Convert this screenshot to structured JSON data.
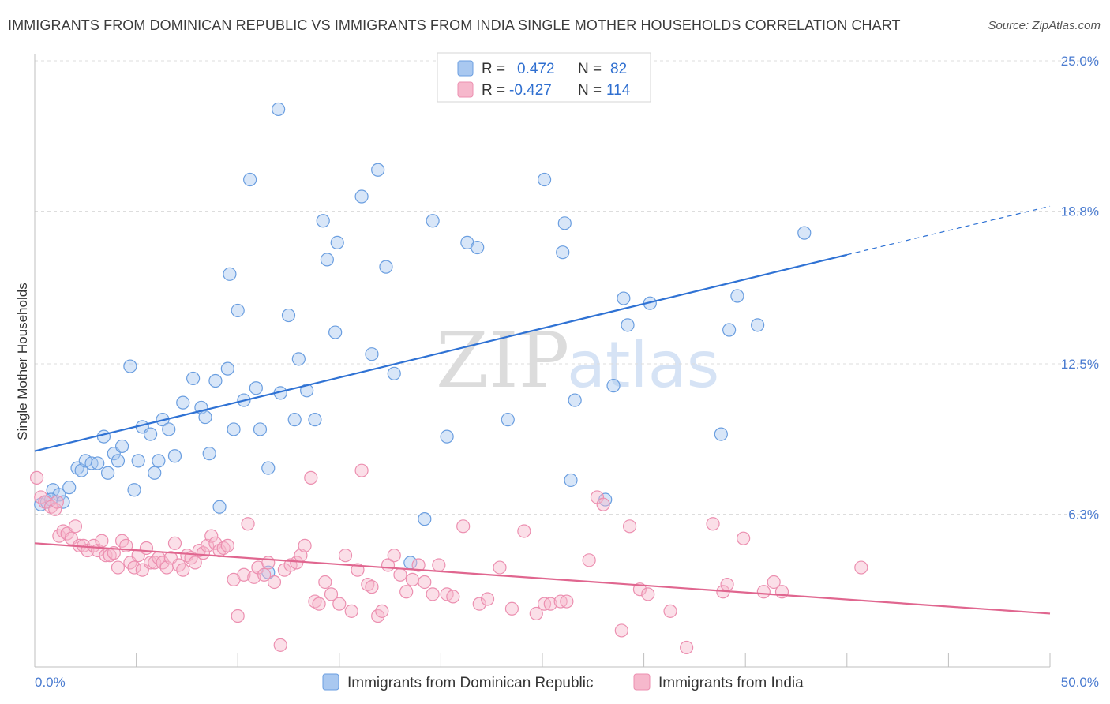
{
  "header": {
    "title": "IMMIGRANTS FROM DOMINICAN REPUBLIC VS IMMIGRANTS FROM INDIA SINGLE MOTHER HOUSEHOLDS CORRELATION CHART",
    "source": "Source: ZipAtlas.com"
  },
  "watermark": {
    "zip": "ZIP",
    "atlas": "atlas"
  },
  "colors": {
    "blue_fill": "#a9c8f0",
    "blue_stroke": "#6a9ee0",
    "blue_line": "#2f72d4",
    "pink_fill": "#f6b8cc",
    "pink_stroke": "#ec8fb0",
    "pink_line": "#e0668f",
    "grid": "#dddddd"
  },
  "legend": {
    "rows": [
      {
        "r_label": "R =",
        "r_value": "0.472",
        "n_label": "N =",
        "n_value": "82"
      },
      {
        "r_label": "R =",
        "r_value": "-0.427",
        "n_label": "N =",
        "n_value": "114"
      }
    ]
  },
  "chart_data": {
    "type": "scatter",
    "ylabel": "Single Mother Households",
    "xlim": [
      0,
      50
    ],
    "ylim": [
      0,
      25.0
    ],
    "x_tick_labels": [
      "0.0%",
      "50.0%"
    ],
    "y_ticks": [
      {
        "value": 6.3,
        "label": "6.3%"
      },
      {
        "value": 12.5,
        "label": "12.5%"
      },
      {
        "value": 18.8,
        "label": "18.8%"
      },
      {
        "value": 25.0,
        "label": "25.0%"
      }
    ],
    "grid": true,
    "legend_position": "top-center",
    "series": [
      {
        "name": "Immigrants from Dominican Republic",
        "color": "#a9c8f0",
        "trend": {
          "x0": 0,
          "y0": 8.9,
          "x1": 40,
          "y1": 17.0,
          "dash_to_x": 50,
          "dash_to_y": 19.0
        },
        "points": [
          [
            0.3,
            6.7
          ],
          [
            0.6,
            6.8
          ],
          [
            0.9,
            7.3
          ],
          [
            1.2,
            7.1
          ],
          [
            1.7,
            7.4
          ],
          [
            2.1,
            8.2
          ],
          [
            2.3,
            8.1
          ],
          [
            2.5,
            8.5
          ],
          [
            2.8,
            8.4
          ],
          [
            3.1,
            8.4
          ],
          [
            3.4,
            9.5
          ],
          [
            3.6,
            8.0
          ],
          [
            3.9,
            8.8
          ],
          [
            4.1,
            8.5
          ],
          [
            4.3,
            9.1
          ],
          [
            4.7,
            12.4
          ],
          [
            4.9,
            7.3
          ],
          [
            5.1,
            8.5
          ],
          [
            5.3,
            9.9
          ],
          [
            5.7,
            9.6
          ],
          [
            5.9,
            8.0
          ],
          [
            6.1,
            8.5
          ],
          [
            6.3,
            10.2
          ],
          [
            6.6,
            9.8
          ],
          [
            6.9,
            8.7
          ],
          [
            7.3,
            10.9
          ],
          [
            7.8,
            11.9
          ],
          [
            8.2,
            10.7
          ],
          [
            8.4,
            10.3
          ],
          [
            8.6,
            8.8
          ],
          [
            8.9,
            11.8
          ],
          [
            9.1,
            6.6
          ],
          [
            9.5,
            12.3
          ],
          [
            9.6,
            16.2
          ],
          [
            9.8,
            9.8
          ],
          [
            10.0,
            14.7
          ],
          [
            10.3,
            11.0
          ],
          [
            10.6,
            20.1
          ],
          [
            10.9,
            11.5
          ],
          [
            11.1,
            9.8
          ],
          [
            11.5,
            8.2
          ],
          [
            11.5,
            3.9
          ],
          [
            12.0,
            23.0
          ],
          [
            12.1,
            11.3
          ],
          [
            12.5,
            14.5
          ],
          [
            12.8,
            10.2
          ],
          [
            13.0,
            12.7
          ],
          [
            13.4,
            11.4
          ],
          [
            13.8,
            10.2
          ],
          [
            14.2,
            18.4
          ],
          [
            14.4,
            16.8
          ],
          [
            14.8,
            13.8
          ],
          [
            14.9,
            17.5
          ],
          [
            16.1,
            19.4
          ],
          [
            16.6,
            12.9
          ],
          [
            16.9,
            20.5
          ],
          [
            17.3,
            16.5
          ],
          [
            17.7,
            12.1
          ],
          [
            18.5,
            4.3
          ],
          [
            19.2,
            6.1
          ],
          [
            19.6,
            18.4
          ],
          [
            20.3,
            9.5
          ],
          [
            21.3,
            17.5
          ],
          [
            21.8,
            17.3
          ],
          [
            23.3,
            10.2
          ],
          [
            25.1,
            20.1
          ],
          [
            26.1,
            18.3
          ],
          [
            26.0,
            17.1
          ],
          [
            26.4,
            7.7
          ],
          [
            26.6,
            11.0
          ],
          [
            28.1,
            6.9
          ],
          [
            28.5,
            11.6
          ],
          [
            29.0,
            15.2
          ],
          [
            29.2,
            14.1
          ],
          [
            30.3,
            15.0
          ],
          [
            33.8,
            9.6
          ],
          [
            34.2,
            13.9
          ],
          [
            34.6,
            15.3
          ],
          [
            35.6,
            14.1
          ],
          [
            37.9,
            17.9
          ],
          [
            0.8,
            6.9
          ],
          [
            1.4,
            6.8
          ]
        ]
      },
      {
        "name": "Immigrants from India",
        "color": "#f6b8cc",
        "trend": {
          "x0": 0,
          "y0": 5.1,
          "x1": 50,
          "y1": 2.2
        },
        "points": [
          [
            0.1,
            7.8
          ],
          [
            0.3,
            7.0
          ],
          [
            0.5,
            6.8
          ],
          [
            0.8,
            6.6
          ],
          [
            1.0,
            6.5
          ],
          [
            1.1,
            6.8
          ],
          [
            1.2,
            5.4
          ],
          [
            1.4,
            5.6
          ],
          [
            1.6,
            5.5
          ],
          [
            1.8,
            5.3
          ],
          [
            2.0,
            5.8
          ],
          [
            2.2,
            5.0
          ],
          [
            2.4,
            5.0
          ],
          [
            2.6,
            4.8
          ],
          [
            2.9,
            5.0
          ],
          [
            3.1,
            4.8
          ],
          [
            3.3,
            5.2
          ],
          [
            3.5,
            4.6
          ],
          [
            3.7,
            4.6
          ],
          [
            3.9,
            4.7
          ],
          [
            4.1,
            4.1
          ],
          [
            4.3,
            5.2
          ],
          [
            4.5,
            5.0
          ],
          [
            4.7,
            4.3
          ],
          [
            4.9,
            4.1
          ],
          [
            5.1,
            4.6
          ],
          [
            5.3,
            4.0
          ],
          [
            5.5,
            4.9
          ],
          [
            5.7,
            4.3
          ],
          [
            5.9,
            4.3
          ],
          [
            6.1,
            4.5
          ],
          [
            6.3,
            4.3
          ],
          [
            6.5,
            4.1
          ],
          [
            6.7,
            4.5
          ],
          [
            6.9,
            5.1
          ],
          [
            7.1,
            4.2
          ],
          [
            7.3,
            4.0
          ],
          [
            7.5,
            4.6
          ],
          [
            7.7,
            4.5
          ],
          [
            7.9,
            4.3
          ],
          [
            8.1,
            4.8
          ],
          [
            8.3,
            4.7
          ],
          [
            8.5,
            5.0
          ],
          [
            8.7,
            5.4
          ],
          [
            8.9,
            5.1
          ],
          [
            9.1,
            4.8
          ],
          [
            9.3,
            4.9
          ],
          [
            9.5,
            5.0
          ],
          [
            9.8,
            3.6
          ],
          [
            10.0,
            2.1
          ],
          [
            10.3,
            3.8
          ],
          [
            10.5,
            5.9
          ],
          [
            10.8,
            3.7
          ],
          [
            11.0,
            4.1
          ],
          [
            11.3,
            3.8
          ],
          [
            11.5,
            4.3
          ],
          [
            11.8,
            3.5
          ],
          [
            12.1,
            0.9
          ],
          [
            12.3,
            4.0
          ],
          [
            12.6,
            4.2
          ],
          [
            12.9,
            4.3
          ],
          [
            13.1,
            4.6
          ],
          [
            13.3,
            5.0
          ],
          [
            13.6,
            7.8
          ],
          [
            13.8,
            2.7
          ],
          [
            14.0,
            2.6
          ],
          [
            14.3,
            3.5
          ],
          [
            14.6,
            3.0
          ],
          [
            15.0,
            2.6
          ],
          [
            15.3,
            4.6
          ],
          [
            15.6,
            2.3
          ],
          [
            15.9,
            4.0
          ],
          [
            16.1,
            8.1
          ],
          [
            16.4,
            3.4
          ],
          [
            16.6,
            3.3
          ],
          [
            16.9,
            2.1
          ],
          [
            17.1,
            2.3
          ],
          [
            17.4,
            4.2
          ],
          [
            17.7,
            4.6
          ],
          [
            18.0,
            3.8
          ],
          [
            18.3,
            3.1
          ],
          [
            18.6,
            3.6
          ],
          [
            18.9,
            4.2
          ],
          [
            19.2,
            3.5
          ],
          [
            19.6,
            3.0
          ],
          [
            19.9,
            4.2
          ],
          [
            20.3,
            3.0
          ],
          [
            20.6,
            2.9
          ],
          [
            21.1,
            5.8
          ],
          [
            21.9,
            2.6
          ],
          [
            22.3,
            2.8
          ],
          [
            22.9,
            4.1
          ],
          [
            23.5,
            2.4
          ],
          [
            24.1,
            5.6
          ],
          [
            24.7,
            2.2
          ],
          [
            25.1,
            2.6
          ],
          [
            25.4,
            2.6
          ],
          [
            25.9,
            2.7
          ],
          [
            26.2,
            2.7
          ],
          [
            27.3,
            4.4
          ],
          [
            27.7,
            7.0
          ],
          [
            28.0,
            6.7
          ],
          [
            28.9,
            1.5
          ],
          [
            29.3,
            5.8
          ],
          [
            29.8,
            3.2
          ],
          [
            30.2,
            3.0
          ],
          [
            31.3,
            2.3
          ],
          [
            32.1,
            0.8
          ],
          [
            33.4,
            5.9
          ],
          [
            33.9,
            3.1
          ],
          [
            34.1,
            3.4
          ],
          [
            34.9,
            5.3
          ],
          [
            35.9,
            3.1
          ],
          [
            36.4,
            3.5
          ],
          [
            36.8,
            3.1
          ],
          [
            40.7,
            4.1
          ]
        ]
      }
    ]
  }
}
